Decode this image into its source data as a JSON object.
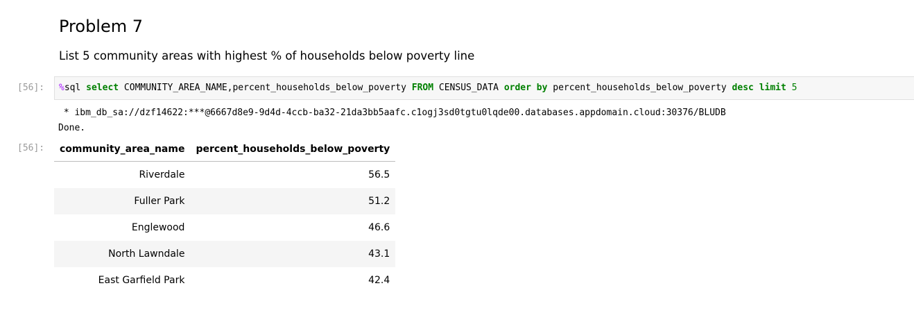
{
  "markdown": {
    "heading": "Problem 7",
    "subheading": "List 5 community areas with highest % of households below poverty line"
  },
  "code_cell": {
    "prompt": "[56]:",
    "tokens": {
      "magic": "%",
      "sql": "sql ",
      "select": "select",
      "columns": " COMMUNITY_AREA_NAME,percent_households_below_poverty ",
      "from": "FROM",
      "table": " CENSUS_DATA ",
      "order_by": "order by",
      "order_col": " percent_households_below_poverty ",
      "desc": "desc",
      "space": " ",
      "limit": "limit",
      "limit_value": " 5"
    }
  },
  "output": {
    "prompt": "[56]:",
    "stdout_lines": [
      " * ibm_db_sa://dzf14622:***@6667d8e9-9d4d-4ccb-ba32-21da3bb5aafc.c1ogj3sd0tgtu0lqde00.databases.appdomain.cloud:30376/BLUDB",
      "Done."
    ],
    "table": {
      "headers": [
        "community_area_name",
        "percent_households_below_poverty"
      ],
      "rows": [
        [
          "Riverdale",
          "56.5"
        ],
        [
          "Fuller Park",
          "51.2"
        ],
        [
          "Englewood",
          "46.6"
        ],
        [
          "North Lawndale",
          "43.1"
        ],
        [
          "East Garfield Park",
          "42.4"
        ]
      ]
    }
  },
  "colors": {
    "magic": "#aa22ff",
    "keyword": "#008000",
    "prompt": "#9a9a9a",
    "input_background": "#f7f7f7",
    "stripe": "#f5f5f5"
  }
}
